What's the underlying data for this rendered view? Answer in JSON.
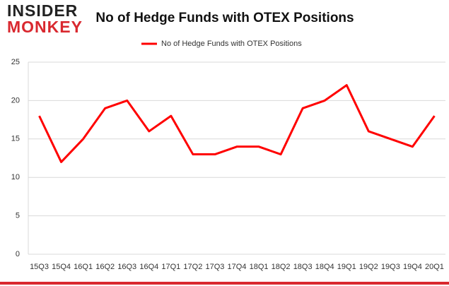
{
  "logo": {
    "line1": "INSIDER",
    "line2": "MONKEY"
  },
  "chart_data": {
    "type": "line",
    "title": "No of Hedge Funds with OTEX Positions",
    "categories": [
      "15Q3",
      "15Q4",
      "16Q1",
      "16Q2",
      "16Q3",
      "16Q4",
      "17Q1",
      "17Q2",
      "17Q3",
      "17Q4",
      "18Q1",
      "18Q2",
      "18Q3",
      "18Q4",
      "19Q1",
      "19Q2",
      "19Q3",
      "19Q4",
      "20Q1"
    ],
    "series": [
      {
        "name": "No of Hedge Funds with OTEX Positions",
        "color": "#ff0000",
        "values": [
          18,
          12,
          15,
          19,
          20,
          16,
          18,
          13,
          13,
          14,
          14,
          13,
          19,
          20,
          22,
          16,
          15,
          14,
          18
        ]
      }
    ],
    "ylim": [
      0,
      25
    ],
    "yticks": [
      0,
      5,
      10,
      15,
      20,
      25
    ],
    "grid": true,
    "legend": "top"
  }
}
